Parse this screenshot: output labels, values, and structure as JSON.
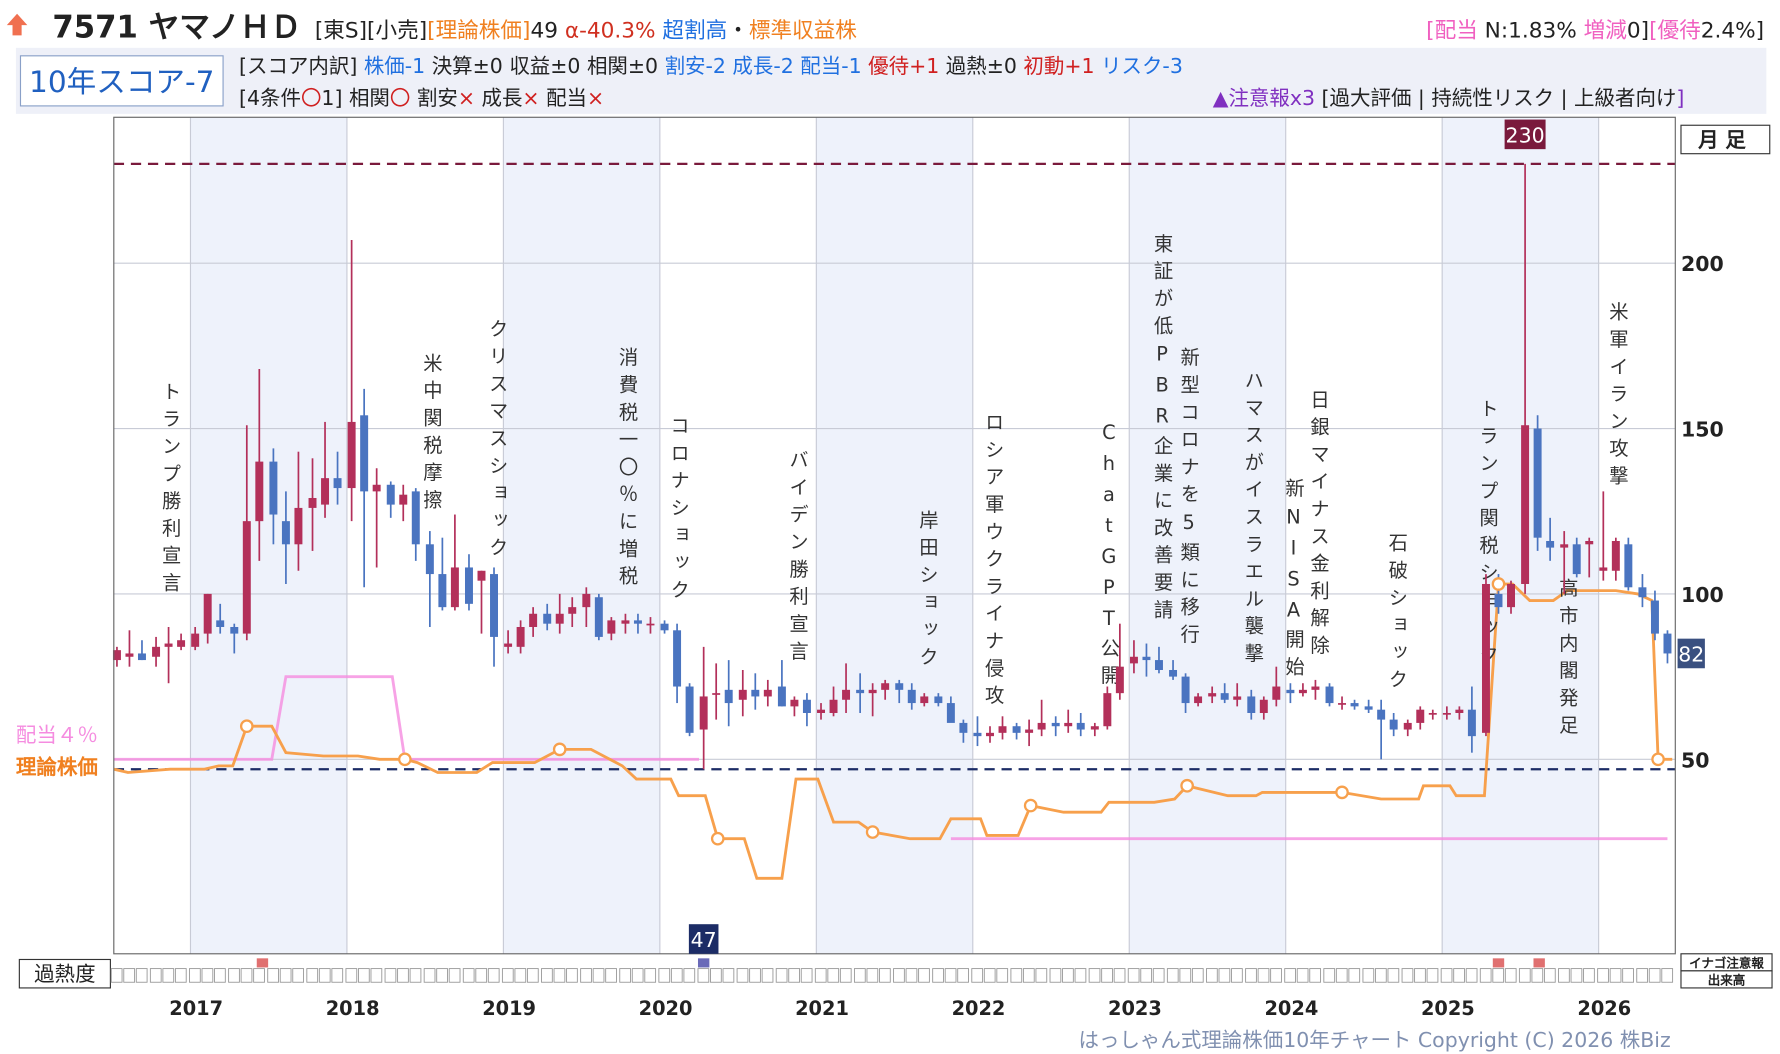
{
  "header": {
    "code_name": "7571 ヤマノＨＤ",
    "line1": [
      {
        "text": "[東S][小売]",
        "color": "#222222"
      },
      {
        "text": "[理論株価]",
        "color": "#f08020"
      },
      {
        "text": "49",
        "color": "#222222"
      },
      {
        "text": " α-40.3%",
        "color": "#d03020"
      },
      {
        "text": " 超割高",
        "color": "#2070e0"
      },
      {
        "text": "・",
        "color": "#222222"
      },
      {
        "text": "標準収益株",
        "color": "#f08020"
      }
    ],
    "line1_right": [
      {
        "text": "[配当",
        "color": "#f060c0"
      },
      {
        "text": " N:1.83%",
        "color": "#222222"
      },
      {
        "text": " 増減",
        "color": "#f060c0"
      },
      {
        "text": "0]",
        "color": "#222222"
      },
      {
        "text": "[優待",
        "color": "#f060c0"
      },
      {
        "text": "2.4%]",
        "color": "#222222"
      }
    ],
    "score": "10年スコア-7",
    "line2": [
      {
        "text": "[スコア内訳]",
        "color": "#222222"
      },
      {
        "text": " 株価-1",
        "color": "#2070e0"
      },
      {
        "text": " 決算±0",
        "color": "#222222"
      },
      {
        "text": " 収益±0",
        "color": "#222222"
      },
      {
        "text": " 相関±0",
        "color": "#222222"
      },
      {
        "text": " 割安-2",
        "color": "#2070e0"
      },
      {
        "text": " 成長-2",
        "color": "#2070e0"
      },
      {
        "text": " 配当-1",
        "color": "#2070e0"
      },
      {
        "text": " 優待+1",
        "color": "#d02020"
      },
      {
        "text": " 過熱±0",
        "color": "#222222"
      },
      {
        "text": " 初動+1",
        "color": "#d02020"
      },
      {
        "text": " リスク-3",
        "color": "#2070e0"
      }
    ],
    "line3": [
      {
        "text": "[4条件",
        "color": "#222222"
      },
      {
        "text": "〇",
        "color": "#d02020"
      },
      {
        "text": "1]",
        "color": "#222222"
      },
      {
        "text": " 相関",
        "color": "#222222"
      },
      {
        "text": "〇",
        "color": "#d02020"
      },
      {
        "text": " 割安",
        "color": "#222222"
      },
      {
        "text": "×",
        "color": "#d02020"
      },
      {
        "text": " 成長",
        "color": "#222222"
      },
      {
        "text": "×",
        "color": "#d02020"
      },
      {
        "text": " 配当",
        "color": "#222222"
      },
      {
        "text": "×",
        "color": "#d02020"
      }
    ],
    "warning": [
      {
        "text": "▲注意報x3",
        "color": "#8030c0"
      },
      {
        "text": " [過大評価 | 持続性リスク | 上級者向け",
        "color": "#222222"
      },
      {
        "text": "]",
        "color": "#8030c0"
      }
    ]
  },
  "chart_data": {
    "type": "candlestick",
    "period": "月足",
    "x": [
      2016.53,
      2016.61,
      2016.69,
      2016.78,
      2016.86,
      2016.94,
      2017.03,
      2017.11,
      2017.19,
      2017.28,
      2017.36,
      2017.44,
      2017.53,
      2017.61,
      2017.69,
      2017.78,
      2017.86,
      2017.94,
      2018.03,
      2018.11,
      2018.19,
      2018.28,
      2018.36,
      2018.44,
      2018.53,
      2018.61,
      2018.69,
      2018.78,
      2018.86,
      2018.94,
      2019.03,
      2019.11,
      2019.19,
      2019.28,
      2019.36,
      2019.44,
      2019.53,
      2019.61,
      2019.69,
      2019.78,
      2019.86,
      2019.94,
      2020.03,
      2020.11,
      2020.19,
      2020.28,
      2020.36,
      2020.44,
      2020.53,
      2020.61,
      2020.69,
      2020.78,
      2020.86,
      2020.94,
      2021.03,
      2021.11,
      2021.19,
      2021.28,
      2021.36,
      2021.44,
      2021.53,
      2021.61,
      2021.69,
      2021.78,
      2021.86,
      2021.94,
      2022.03,
      2022.11,
      2022.19,
      2022.28,
      2022.36,
      2022.44,
      2022.53,
      2022.61,
      2022.69,
      2022.78,
      2022.86,
      2022.94,
      2023.03,
      2023.11,
      2023.19,
      2023.28,
      2023.36,
      2023.44,
      2023.53,
      2023.61,
      2023.69,
      2023.78,
      2023.86,
      2023.94,
      2024.03,
      2024.11,
      2024.19,
      2024.28,
      2024.36,
      2024.44,
      2024.53,
      2024.61,
      2024.69,
      2024.78,
      2024.86,
      2024.94,
      2025.03,
      2025.11,
      2025.19,
      2025.28,
      2025.36,
      2025.44,
      2025.53,
      2025.61,
      2025.69,
      2025.78,
      2025.86,
      2025.94,
      2026.03,
      2026.11,
      2026.19,
      2026.28,
      2026.36,
      2026.44
    ],
    "open": [
      80,
      81,
      82,
      81,
      84,
      84,
      84,
      88,
      92,
      90,
      88,
      122,
      140,
      122,
      115,
      126,
      127,
      135,
      132,
      154,
      131,
      133,
      127,
      131,
      115,
      106,
      96,
      108,
      104,
      106,
      84,
      84,
      90,
      94,
      91,
      94,
      96,
      99,
      88,
      91,
      92,
      91,
      91,
      89,
      72,
      59,
      70,
      71,
      68,
      71,
      69,
      72,
      66,
      68,
      64,
      64,
      68,
      71,
      70,
      71,
      73,
      71,
      67,
      69,
      67,
      61,
      58,
      57,
      58,
      60,
      58,
      59,
      61,
      60,
      61,
      59,
      60,
      70,
      79,
      81,
      80,
      77,
      75,
      67,
      69,
      70,
      68,
      69,
      64,
      68,
      71,
      70,
      71,
      72,
      67,
      67,
      66,
      65,
      62,
      59,
      61,
      64,
      64,
      64,
      65,
      58,
      100,
      96,
      103,
      150,
      116,
      114,
      115,
      115,
      107,
      107,
      115,
      102,
      98,
      88
    ],
    "high": [
      84,
      89,
      86,
      87,
      90,
      88,
      90,
      100,
      97,
      91,
      151,
      168,
      144,
      131,
      143,
      141,
      152,
      143,
      207,
      162,
      138,
      134,
      133,
      132,
      119,
      117,
      124,
      112,
      107,
      108,
      89,
      92,
      96,
      97,
      100,
      99,
      102,
      100,
      93,
      94,
      94,
      93,
      92,
      91,
      73,
      84,
      79,
      80,
      77,
      76,
      74,
      80,
      69,
      70,
      67,
      72,
      79,
      76,
      73,
      74,
      74,
      73,
      70,
      70,
      69,
      62,
      63,
      60,
      63,
      61,
      62,
      68,
      63,
      65,
      64,
      61,
      72,
      91,
      86,
      85,
      84,
      80,
      76,
      70,
      72,
      73,
      73,
      71,
      69,
      78,
      73,
      73,
      74,
      73,
      69,
      68,
      68,
      68,
      64,
      62,
      66,
      65,
      66,
      66,
      72,
      106,
      106,
      104,
      230,
      154,
      123,
      119,
      117,
      117,
      131,
      117,
      117,
      106,
      101,
      89
    ],
    "low": [
      78,
      78,
      80,
      78,
      73,
      83,
      83,
      85,
      88,
      82,
      86,
      110,
      115,
      103,
      107,
      113,
      123,
      127,
      122,
      102,
      108,
      123,
      122,
      110,
      90,
      95,
      95,
      95,
      88,
      78,
      82,
      82,
      87,
      89,
      88,
      90,
      90,
      86,
      86,
      88,
      88,
      88,
      88,
      67,
      57,
      47,
      62,
      60,
      63,
      65,
      66,
      66,
      63,
      60,
      62,
      63,
      64,
      64,
      63,
      68,
      67,
      65,
      66,
      66,
      62,
      55,
      54,
      55,
      56,
      56,
      54,
      57,
      57,
      58,
      57,
      57,
      59,
      68,
      76,
      75,
      76,
      74,
      64,
      66,
      67,
      67,
      66,
      62,
      62,
      66,
      67,
      69,
      68,
      66,
      65,
      65,
      64,
      50,
      57,
      57,
      59,
      62,
      62,
      62,
      52,
      57,
      94,
      94,
      100,
      113,
      110,
      100,
      105,
      105,
      104,
      104,
      101,
      96,
      86,
      79
    ],
    "close": [
      83,
      82,
      80,
      84,
      85,
      86,
      88,
      100,
      90,
      88,
      122,
      140,
      124,
      115,
      126,
      129,
      135,
      132,
      152,
      131,
      133,
      127,
      130,
      115,
      106,
      96,
      108,
      97,
      107,
      87,
      85,
      90,
      94,
      91,
      94,
      96,
      100,
      87,
      92,
      92,
      91,
      91,
      89,
      72,
      58,
      69,
      70,
      67,
      71,
      69,
      71,
      66,
      68,
      64,
      65,
      68,
      71,
      70,
      71,
      73,
      71,
      67,
      69,
      67,
      61,
      58,
      57,
      58,
      60,
      58,
      59,
      61,
      60,
      61,
      59,
      60,
      70,
      78,
      81,
      80,
      77,
      75,
      67,
      69,
      70,
      68,
      69,
      64,
      68,
      72,
      70,
      71,
      72,
      67,
      67,
      66,
      65,
      62,
      59,
      61,
      65,
      64,
      64,
      65,
      57,
      103,
      96,
      103,
      151,
      117,
      114,
      115,
      106,
      116,
      108,
      116,
      102,
      99,
      88,
      82
    ],
    "up_color": "#b3305a",
    "down_color": "#4a74c0",
    "max_color": "#7a1a3c",
    "min_color": "#1c2c66",
    "theory": {
      "name": "理論株価",
      "color": "#f7a04c",
      "x": [
        2016.51,
        2016.6,
        2016.87,
        2017.09,
        2017.18,
        2017.27,
        2017.36,
        2017.52,
        2017.61,
        2017.85,
        2018.07,
        2018.21,
        2018.37,
        2018.45,
        2018.58,
        2018.83,
        2018.93,
        2019.2,
        2019.36,
        2019.56,
        2019.76,
        2019.85,
        2020.07,
        2020.12,
        2020.29,
        2020.37,
        2020.54,
        2020.62,
        2020.78,
        2020.87,
        2021.01,
        2021.11,
        2021.27,
        2021.36,
        2021.6,
        2021.79,
        2021.86,
        2022.05,
        2022.09,
        2022.29,
        2022.37,
        2022.58,
        2022.82,
        2022.87,
        2023.16,
        2023.29,
        2023.37,
        2023.63,
        2023.81,
        2023.85,
        2024.21,
        2024.36,
        2024.61,
        2024.85,
        2024.88,
        2025.05,
        2025.09,
        2025.27,
        2025.36,
        2025.45,
        2025.56,
        2025.71,
        2025.8,
        2026.11,
        2026.25,
        2026.34,
        2026.38,
        2026.47
      ],
      "values": [
        47,
        46,
        47,
        47,
        48,
        48,
        60,
        60,
        52,
        51,
        51,
        50,
        50,
        49,
        46,
        46,
        49,
        49,
        53,
        53,
        48,
        44,
        44,
        39,
        39,
        26,
        26,
        14,
        14,
        44,
        44,
        31,
        31,
        28,
        26,
        26,
        32,
        32,
        27,
        27,
        36,
        34,
        34,
        37,
        37,
        38,
        42,
        39,
        39,
        40,
        40,
        40,
        38,
        38,
        42,
        42,
        39,
        39,
        103,
        103,
        98,
        98,
        101,
        101,
        100,
        98,
        50,
        50
      ],
      "markers": {
        "x": [
          2017.36,
          2018.37,
          2019.36,
          2020.37,
          2021.36,
          2022.37,
          2023.37,
          2024.36,
          2025.36,
          2026.38
        ],
        "values": [
          60,
          50,
          53,
          26,
          28,
          36,
          42,
          40,
          103,
          50
        ]
      }
    },
    "dividend": {
      "name": "配当４％",
      "color": "#f58ce0",
      "x": [
        2016.51,
        2017.52,
        2017.61,
        2018.29,
        2018.37,
        2020.25,
        2020.3,
        2021.86,
        2026.44
      ],
      "values": [
        50,
        50,
        75,
        75,
        50,
        50,
        null,
        26,
        26
      ]
    },
    "overheat": {
      "label": "過熱度",
      "color": "#e07070",
      "x": [
        2017.46,
        2025.36,
        2025.62
      ]
    },
    "side_labels": [
      "イナゴ注意報",
      "出来高"
    ],
    "xlim": [
      2016.51,
      2026.49
    ],
    "ylim": [
      -8.8,
      244.1
    ],
    "xticks": [
      2017,
      2018,
      2019,
      2020,
      2021,
      2022,
      2023,
      2024,
      2025,
      2026
    ],
    "yticks": [
      50,
      100,
      150,
      200
    ],
    "grid": true,
    "events": [
      {
        "label": "トランプ勝利宣言",
        "x": 2016.87
      },
      {
        "label": "米中関税摩擦",
        "x": 2018.54
      },
      {
        "label": "クリスマスショック",
        "x": 2018.96
      },
      {
        "label": "消費税一〇％に増税",
        "x": 2019.79
      },
      {
        "label": "コロナショック",
        "x": 2020.12
      },
      {
        "label": "バイデン勝利宣言",
        "x": 2020.88
      },
      {
        "label": "岸田ショック",
        "x": 2021.71
      },
      {
        "label": "ロシア軍ウクライナ侵攻",
        "x": 2022.13
      },
      {
        "label": "ChatGPT公開",
        "x": 2022.87
      },
      {
        "label": "東証が低PBR企業に改善要請",
        "x": 2023.21
      },
      {
        "label": "新型コロナを5類に移行",
        "x": 2023.38
      },
      {
        "label": "ハマスがイスラエル襲撃",
        "x": 2023.79
      },
      {
        "label": "新NISA開始",
        "x": 2024.05
      },
      {
        "label": "日銀マイナス金利解除",
        "x": 2024.21
      },
      {
        "label": "石破ショック",
        "x": 2024.71
      },
      {
        "label": "トランプ関税ショック",
        "x": 2025.29
      },
      {
        "label": "高市内閣発足",
        "x": 2025.8
      },
      {
        "label": "米軍イラン攻撃",
        "x": 2026.12
      }
    ]
  },
  "footer": "はっしゃん式理論株価10年チャート Copyright (C) 2026 株Biz"
}
